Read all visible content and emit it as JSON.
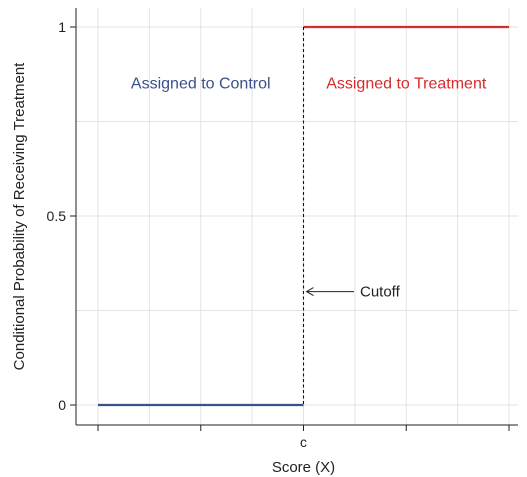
{
  "chart_data": {
    "type": "line",
    "title": "",
    "xlabel": "Score (X)",
    "ylabel": "Conditional Probability of Receiving Treatment",
    "xlim": [
      -2,
      2
    ],
    "ylim": [
      -0.05,
      1.05
    ],
    "grid": true,
    "x_ticks": [
      {
        "value": -2,
        "label": ""
      },
      {
        "value": -1,
        "label": ""
      },
      {
        "value": 0,
        "label": "c"
      },
      {
        "value": 1,
        "label": ""
      },
      {
        "value": 2,
        "label": ""
      }
    ],
    "y_ticks": [
      {
        "value": 0,
        "label": "0"
      },
      {
        "value": 0.5,
        "label": "0.5"
      },
      {
        "value": 1,
        "label": "1"
      }
    ],
    "x_minor_grid": [
      -1.5,
      -0.5,
      0.5,
      1.5
    ],
    "y_minor_grid": [
      0.25,
      0.75
    ],
    "series": [
      {
        "color": "#3b4f8c",
        "x": [
          -2,
          0
        ],
        "y": [
          0,
          0
        ]
      },
      {
        "color": "#d52b2b",
        "x": [
          0,
          2
        ],
        "y": [
          1,
          1
        ]
      }
    ],
    "cutoff": {
      "x": 0,
      "style": "dashed"
    },
    "region_labels": [
      {
        "text": "Assigned to Control",
        "x": -1,
        "y": 0.85,
        "color": "#3b4f8c"
      },
      {
        "text": "Assigned to Treatment",
        "x": 1,
        "y": 0.85,
        "color": "#d52b2b"
      }
    ],
    "annotations": [
      {
        "text": "Cutoff",
        "arrow_to": {
          "x": 0,
          "y": 0.3
        },
        "text_at": {
          "x": 0.55,
          "y": 0.3
        }
      }
    ]
  }
}
